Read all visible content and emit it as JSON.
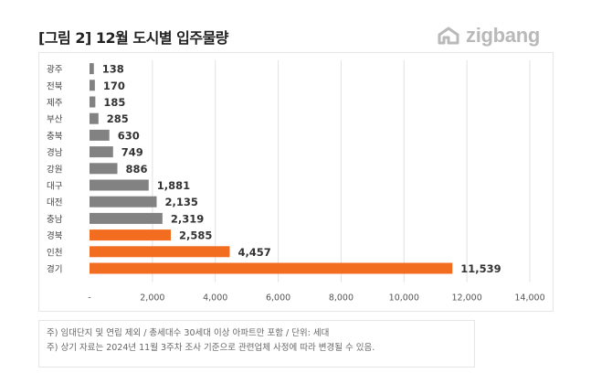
{
  "title": "[그림 2] 12월 도시별 입주물량",
  "logo_text": "zigbang",
  "colors": {
    "gray_bar": "#828282",
    "orange_bar": "#f36d21",
    "grid": "#e2e2e2"
  },
  "notes": [
    "주) 임대단지 및 연립 제외 / 총세대수 30세대 이상 아파트만 포함 / 단위: 세대",
    "주) 상기 자료는 2024년 11월 3주차 조사 기준으로 관련업체 사정에 따라 변경될 수 있음."
  ],
  "chart_data": {
    "type": "bar",
    "orientation": "horizontal",
    "title": "",
    "xlabel": "",
    "ylabel": "",
    "categories": [
      "광주",
      "전북",
      "제주",
      "부산",
      "충북",
      "경남",
      "강원",
      "대구",
      "대전",
      "충남",
      "경북",
      "인천",
      "경기"
    ],
    "values": [
      138,
      170,
      185,
      285,
      630,
      749,
      886,
      1881,
      2135,
      2319,
      2585,
      4457,
      11539
    ],
    "value_labels": [
      "138",
      "170",
      "185",
      "285",
      "630",
      "749",
      "886",
      "1,881",
      "2,135",
      "2,319",
      "2,585",
      "4,457",
      "11,539"
    ],
    "highlight": [
      "gray",
      "gray",
      "gray",
      "gray",
      "gray",
      "gray",
      "gray",
      "gray",
      "gray",
      "gray",
      "orange",
      "orange",
      "orange"
    ],
    "x_ticks": [
      0,
      2000,
      4000,
      6000,
      8000,
      10000,
      12000,
      14000
    ],
    "x_tick_labels": [
      "-",
      "2,000",
      "4,000",
      "6,000",
      "8,000",
      "10,000",
      "12,000",
      "14,000"
    ],
    "xlim": [
      0,
      14000
    ],
    "grid": true,
    "legend": "none"
  }
}
